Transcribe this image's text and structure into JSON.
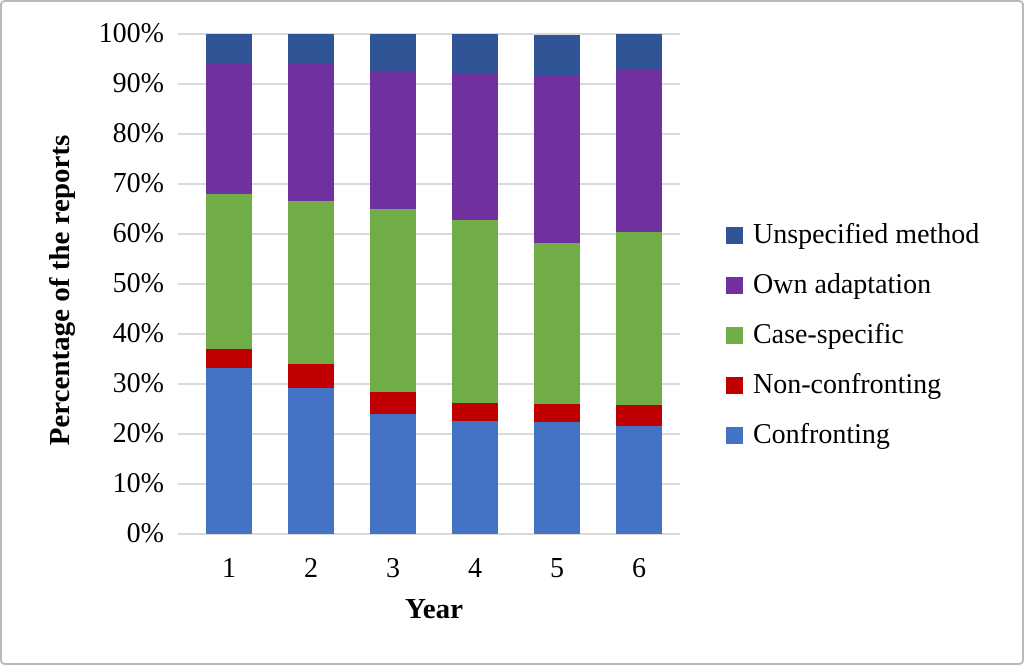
{
  "chart_data": {
    "type": "bar",
    "variant": "stacked-percent",
    "title": "",
    "xlabel": "Year",
    "ylabel": "Percentage of the reports",
    "categories": [
      "1",
      "2",
      "3",
      "4",
      "5",
      "6"
    ],
    "series": [
      {
        "name": "Confronting",
        "color": "#4472C4",
        "values": [
          33.3,
          29.2,
          24.1,
          22.7,
          22.5,
          21.7
        ]
      },
      {
        "name": "Non-confronting",
        "color": "#C00000",
        "values": [
          3.7,
          4.8,
          4.3,
          3.6,
          3.5,
          4.2
        ]
      },
      {
        "name": "Case-specific",
        "color": "#70AD47",
        "values": [
          31.0,
          32.7,
          36.6,
          36.5,
          32.2,
          34.5
        ]
      },
      {
        "name": "Own adaptation",
        "color": "#7030A0",
        "values": [
          26.0,
          27.4,
          27.4,
          29.2,
          33.6,
          32.4
        ]
      },
      {
        "name": "Unspecified method",
        "color": "#2F5597",
        "values": [
          6.0,
          5.9,
          7.6,
          8.0,
          8.0,
          7.2
        ]
      }
    ],
    "stack_order": "bottom-to-top as listed in series",
    "y_axis": {
      "min": 0,
      "max": 100,
      "tick_labels": [
        "0%",
        "10%",
        "20%",
        "30%",
        "40%",
        "50%",
        "60%",
        "70%",
        "80%",
        "90%",
        "100%"
      ],
      "gridlines": true,
      "gridline_color": "#D9D9D9"
    },
    "legend": {
      "position": "right",
      "order_top_to_bottom": [
        "Unspecified method",
        "Own adaptation",
        "Case-specific",
        "Non-confronting",
        "Confronting"
      ]
    }
  }
}
